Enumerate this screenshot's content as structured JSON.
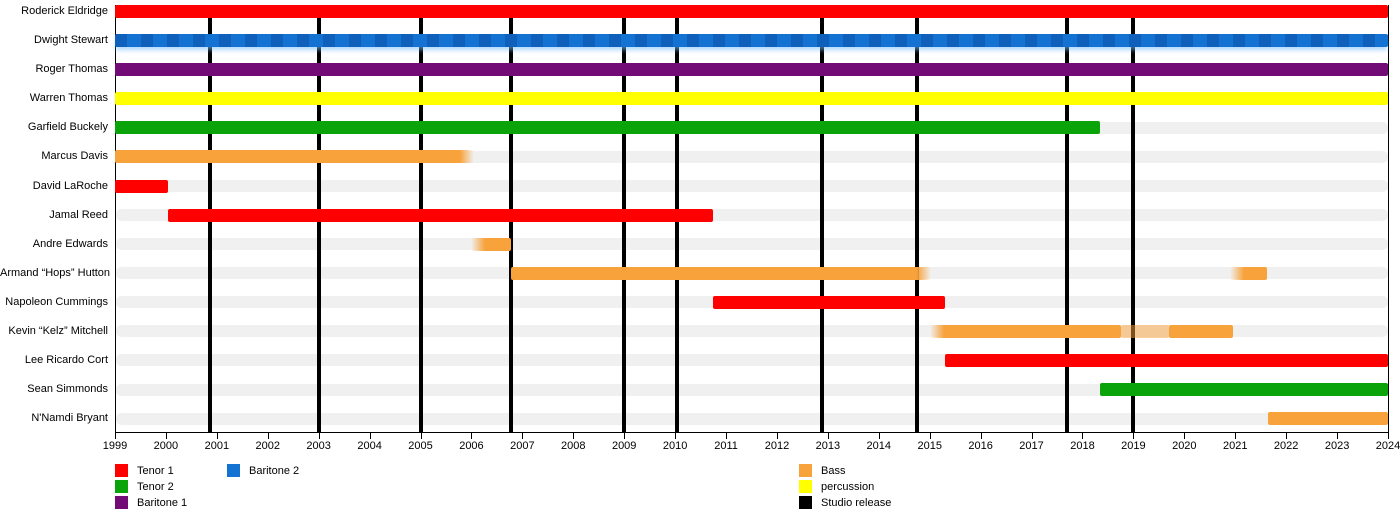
{
  "chart_data": {
    "type": "timeline-gantt",
    "description": "Band member timeline with studio release markers",
    "x_axis": {
      "start": 1999,
      "end": 2024,
      "ticks": [
        1999,
        2000,
        2001,
        2002,
        2003,
        2004,
        2005,
        2006,
        2007,
        2008,
        2009,
        2010,
        2011,
        2012,
        2013,
        2014,
        2015,
        2016,
        2017,
        2018,
        2019,
        2020,
        2021,
        2022,
        2023,
        2024
      ],
      "tick_labels": [
        "1999",
        "2000",
        "2001",
        "2002",
        "2003",
        "2004",
        "2005",
        "2006",
        "2007",
        "2008",
        "2009",
        "2010",
        "2011",
        "2012",
        "2013",
        "2014",
        "2015",
        "2016",
        "2017",
        "2018",
        "2019",
        "2020",
        "2021",
        "2022",
        "2023",
        "2024"
      ]
    },
    "rows": [
      {
        "label": "Roderick Eldridge",
        "bars": [
          {
            "start": 1999,
            "end": 2024,
            "role": "Tenor 1"
          }
        ]
      },
      {
        "label": "Dwight Stewart",
        "bars": [
          {
            "start": 1999,
            "end": 2024,
            "role": "Baritone 2"
          }
        ]
      },
      {
        "label": "Roger Thomas",
        "bars": [
          {
            "start": 1999,
            "end": 2024,
            "role": "Baritone 1"
          }
        ]
      },
      {
        "label": "Warren Thomas",
        "bars": [
          {
            "start": 1999,
            "end": 2024,
            "role": "percussion"
          }
        ]
      },
      {
        "label": "Garfield Buckely",
        "bars": [
          {
            "start": 1999,
            "end": 2018.35,
            "role": "Tenor 2"
          }
        ]
      },
      {
        "label": "Marcus Davis",
        "bars": [
          {
            "start": 1999,
            "end": 2006.05,
            "role": "Bass",
            "fade_end": true
          }
        ]
      },
      {
        "label": "David LaRoche",
        "bars": [
          {
            "start": 1999,
            "end": 2000.05,
            "role": "Tenor 1"
          }
        ]
      },
      {
        "label": "Jamal Reed",
        "bars": [
          {
            "start": 2000.05,
            "end": 2010.75,
            "role": "Tenor 1"
          }
        ]
      },
      {
        "label": "Andre Edwards",
        "bars": [
          {
            "start": 2006.0,
            "end": 2006.77,
            "role": "Bass",
            "fade_start": true
          }
        ]
      },
      {
        "label": "Armand “Hops” Hutton",
        "bars": [
          {
            "start": 2006.77,
            "end": 2015.03,
            "role": "Bass",
            "fade_end": true
          },
          {
            "start": 2020.9,
            "end": 2021.63,
            "role": "Bass",
            "fade_start": true
          }
        ]
      },
      {
        "label": "Napoleon Cummings",
        "bars": [
          {
            "start": 2010.75,
            "end": 2015.3,
            "role": "Tenor 1"
          }
        ]
      },
      {
        "label": "Kevin “Kelz” Mitchell",
        "bars": [
          {
            "start": 2015.0,
            "end": 2020.95,
            "role": "Bass",
            "fade_start": true,
            "light_span": [
              2018.75,
              2019.7
            ]
          }
        ]
      },
      {
        "label": "Lee Ricardo Cort",
        "bars": [
          {
            "start": 2015.3,
            "end": 2024,
            "role": "Tenor 1"
          }
        ]
      },
      {
        "label": "Sean Simmonds",
        "bars": [
          {
            "start": 2018.35,
            "end": 2024,
            "role": "Tenor 2"
          }
        ]
      },
      {
        "label": "N'Namdi Bryant",
        "bars": [
          {
            "start": 2021.65,
            "end": 2024,
            "role": "Bass"
          }
        ]
      }
    ],
    "studio_releases": [
      2000.86,
      2003.0,
      2005.0,
      2006.77,
      2009.0,
      2010.03,
      2012.88,
      2014.76,
      2017.7,
      2019.0
    ],
    "colors": {
      "Tenor 1": "#FF0000",
      "Tenor 2": "#0AA40A",
      "Baritone 1": "#730B77",
      "Baritone 2": "#1473D2",
      "Bass": "#F8A23B",
      "percussion": "#FFFF00",
      "Studio release": "#000000",
      "track": "#F0F0F0"
    },
    "legend": {
      "columns": [
        {
          "items": [
            {
              "label": "Tenor 1",
              "color_key": "Tenor 1"
            },
            {
              "label": "Tenor 2",
              "color_key": "Tenor 2"
            },
            {
              "label": "Baritone 1",
              "color_key": "Baritone 1"
            }
          ]
        },
        {
          "items": [
            {
              "label": "Baritone 2",
              "color_key": "Baritone 2"
            }
          ]
        },
        {
          "items": [
            {
              "label": "Bass",
              "color_key": "Bass"
            },
            {
              "label": "percussion",
              "color_key": "percussion"
            },
            {
              "label": "Studio release",
              "color_key": "Studio release"
            }
          ]
        }
      ]
    }
  }
}
